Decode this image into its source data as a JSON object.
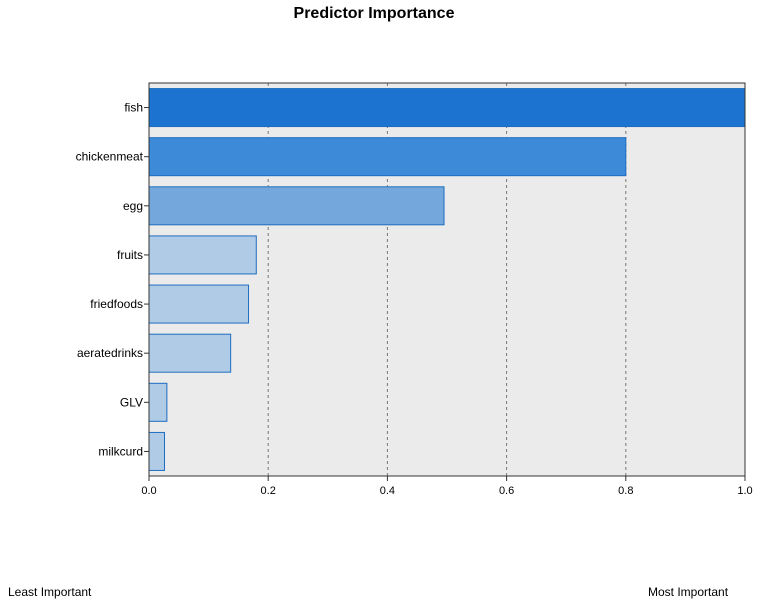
{
  "chart_data": {
    "type": "bar",
    "orientation": "horizontal",
    "title": "Predictor Importance",
    "categories": [
      "fish",
      "chickenmeat",
      "egg",
      "fruits",
      "friedfoods",
      "aeratedrinks",
      "GLV",
      "milkcurd"
    ],
    "values": [
      1.0,
      0.8,
      0.495,
      0.18,
      0.167,
      0.137,
      0.03,
      0.026
    ],
    "xlim": [
      0.0,
      1.0
    ],
    "xticks": [
      "0.0",
      "0.2",
      "0.4",
      "0.6",
      "0.8",
      "1.0"
    ],
    "grid": "vertical-dashed",
    "xlabel": "",
    "ylabel": "",
    "colors": {
      "plot_background": "#ebebeb",
      "bar_fill_high": "#1c74d0",
      "bar_fill_mid": "#3d8ad8",
      "bar_fill_low": "#b0cbe6",
      "bar_stroke": "#1e6dc1"
    }
  },
  "footer": {
    "left_label": "Least Important",
    "right_label": "Most Important"
  }
}
